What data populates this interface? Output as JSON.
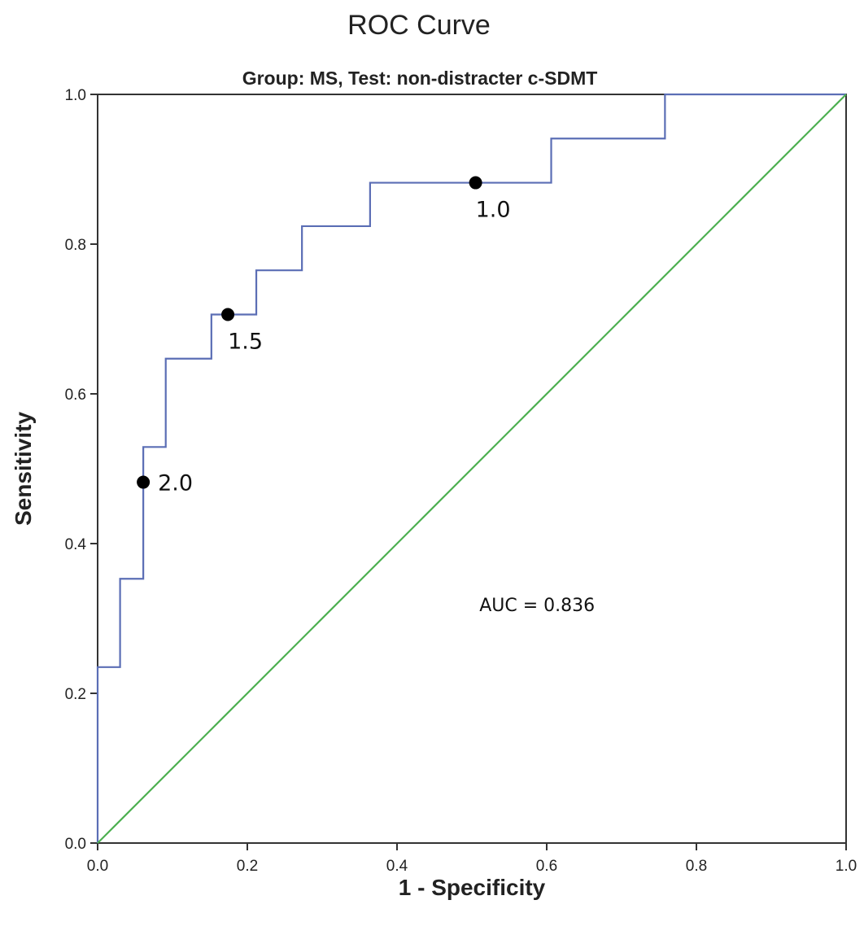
{
  "chart_data": {
    "type": "line",
    "title": "ROC Curve",
    "subtitle": "Group: MS, Test: non-distracter c-SDMT",
    "xlabel": "1 - Specificity",
    "ylabel": "Sensitivity",
    "xlim": [
      0,
      1
    ],
    "ylim": [
      0,
      1
    ],
    "x_ticks": [
      "0.0",
      "0.2",
      "0.4",
      "0.6",
      "0.8",
      "1.0"
    ],
    "y_ticks": [
      "0.0",
      "0.2",
      "0.4",
      "0.6",
      "0.8",
      "1.0"
    ],
    "grid": false,
    "legend": "none",
    "series": [
      {
        "color": "#5b6eb5",
        "step": true,
        "x": [
          0,
          0,
          0.03,
          0.03,
          0.061,
          0.061,
          0.091,
          0.091,
          0.152,
          0.152,
          0.212,
          0.212,
          0.273,
          0.273,
          0.364,
          0.364,
          0.606,
          0.606,
          0.758,
          0.758,
          1.0
        ],
        "y": [
          0,
          0.235,
          0.235,
          0.353,
          0.353,
          0.529,
          0.529,
          0.647,
          0.647,
          0.706,
          0.706,
          0.765,
          0.765,
          0.824,
          0.824,
          0.882,
          0.882,
          0.941,
          0.941,
          1.0,
          1.0
        ]
      },
      {
        "color": "#4caf50",
        "x": [
          0,
          1
        ],
        "y": [
          0,
          1
        ]
      }
    ],
    "points": [
      {
        "x": 0.061,
        "y": 0.482,
        "label": "2.0"
      },
      {
        "x": 0.174,
        "y": 0.706,
        "label": "1.5"
      },
      {
        "x": 0.505,
        "y": 0.882,
        "label": "1.0"
      }
    ],
    "annotations": [
      {
        "text": "AUC = 0.836",
        "x": 0.51,
        "y": 0.31
      }
    ]
  }
}
